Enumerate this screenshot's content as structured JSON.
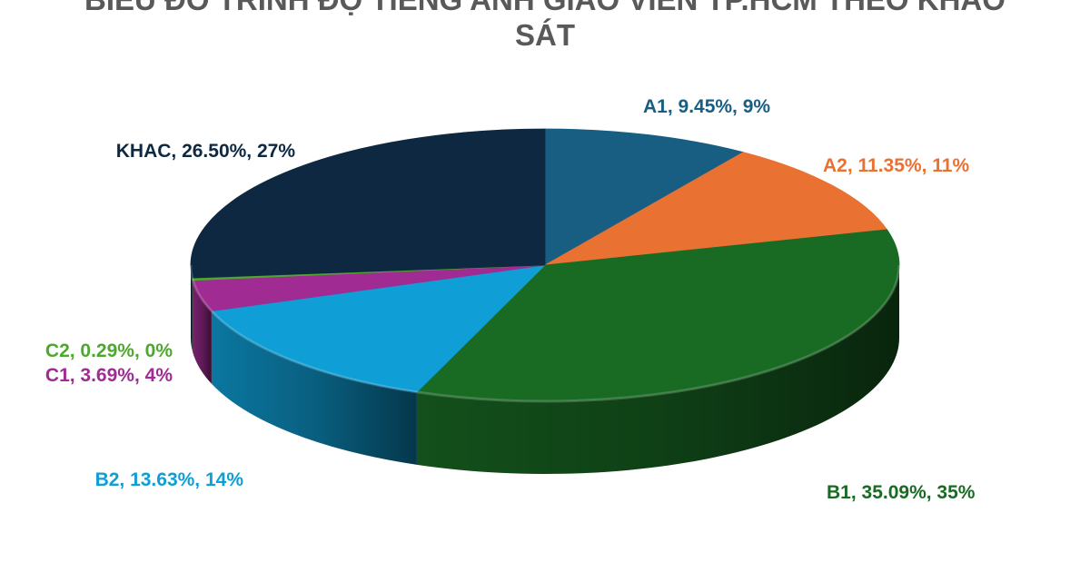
{
  "chart_data": {
    "type": "pie",
    "title_line1": "BIỂU ĐỒ TRÌNH ĐỘ TIẾNG ANH GIÁO VIÊN TP.HCM THEO KHẢO",
    "title_line2": "SÁT",
    "slices": [
      {
        "label": "A1",
        "percent": 9.45,
        "rounded": "9%",
        "text": "A1, 9.45%, 9%",
        "color": "#175E82"
      },
      {
        "label": "A2",
        "percent": 11.35,
        "rounded": "11%",
        "text": "A2, 11.35%, 11%",
        "color": "#E97132"
      },
      {
        "label": "B1",
        "percent": 35.09,
        "rounded": "35%",
        "text": "B1, 35.09%, 35%",
        "color": "#196B24"
      },
      {
        "label": "B2",
        "percent": 13.63,
        "rounded": "14%",
        "text": "B2, 13.63%, 14%",
        "color": "#0F9ED5"
      },
      {
        "label": "C1",
        "percent": 3.69,
        "rounded": "4%",
        "text": "C1, 3.69%, 4%",
        "color": "#A02B93"
      },
      {
        "label": "C2",
        "percent": 0.29,
        "rounded": "0%",
        "text": "C2, 0.29%, 0%",
        "color": "#4EA72E"
      },
      {
        "label": "KHAC",
        "percent": 26.5,
        "rounded": "27%",
        "text": "KHAC, 26.50%, 27%",
        "color": "#0E2841"
      }
    ]
  }
}
